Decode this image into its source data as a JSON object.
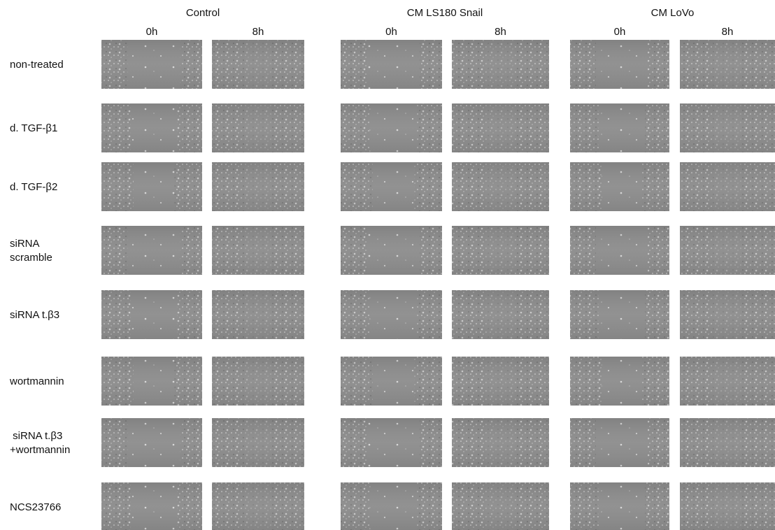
{
  "figure": {
    "groups": [
      {
        "title": "Control",
        "times": [
          "0h",
          "8h"
        ]
      },
      {
        "title": "CM LS180 Snail",
        "times": [
          "0h",
          "8h"
        ]
      },
      {
        "title": "CM LoVo",
        "times": [
          "0h",
          "8h"
        ]
      }
    ],
    "rows": [
      {
        "label": [
          "non-treated"
        ]
      },
      {
        "label": [
          "d. TGF-β1"
        ]
      },
      {
        "label": [
          "d. TGF-β2"
        ]
      },
      {
        "label": [
          "siRNA",
          "scramble"
        ]
      },
      {
        "label": [
          "siRNA t.β3"
        ]
      },
      {
        "label": [
          "wortmannin"
        ]
      },
      {
        "label": [
          " siRNA t.β3",
          "+wortmannin"
        ]
      },
      {
        "label": [
          "NCS23766"
        ]
      }
    ]
  }
}
